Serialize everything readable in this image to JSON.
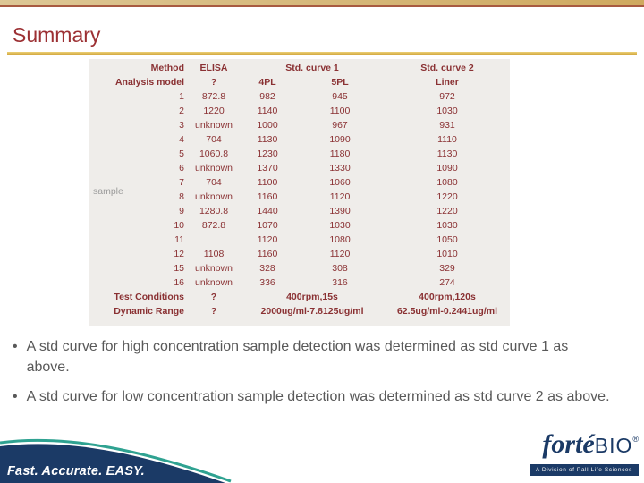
{
  "slide": {
    "title": "Summary"
  },
  "colors": {
    "top_band_gold": "#d4b878",
    "title_red": "#9c3033",
    "table_text_maroon": "#8a3133",
    "panel_gray": "#efedea",
    "bullet_gray": "#595959",
    "navy": "#1b3a66",
    "teal_accent": "#2fa291"
  },
  "table": {
    "header": {
      "method": "Method",
      "analysis_model": "Analysis model",
      "elisa": "ELISA",
      "elisa_model": "?",
      "std_curve_1": "Std. curve 1",
      "model_4pl": "4PL",
      "model_5pl": "5PL",
      "std_curve_2": "Std. curve 2",
      "model_liner": "Liner"
    },
    "sample_label": "sample",
    "rows": [
      {
        "id": "1",
        "elisa": "872.8",
        "pl4": "982",
        "pl5": "945",
        "liner": "972"
      },
      {
        "id": "2",
        "elisa": "1220",
        "pl4": "1140",
        "pl5": "1100",
        "liner": "1030"
      },
      {
        "id": "3",
        "elisa": "unknown",
        "pl4": "1000",
        "pl5": "967",
        "liner": "931"
      },
      {
        "id": "4",
        "elisa": "704",
        "pl4": "1130",
        "pl5": "1090",
        "liner": "1110"
      },
      {
        "id": "5",
        "elisa": "1060.8",
        "pl4": "1230",
        "pl5": "1180",
        "liner": "1130"
      },
      {
        "id": "6",
        "elisa": "unknown",
        "pl4": "1370",
        "pl5": "1330",
        "liner": "1090"
      },
      {
        "id": "7",
        "elisa": "704",
        "pl4": "1100",
        "pl5": "1060",
        "liner": "1080"
      },
      {
        "id": "8",
        "elisa": "unknown",
        "pl4": "1160",
        "pl5": "1120",
        "liner": "1220"
      },
      {
        "id": "9",
        "elisa": "1280.8",
        "pl4": "1440",
        "pl5": "1390",
        "liner": "1220"
      },
      {
        "id": "10",
        "elisa": "872.8",
        "pl4": "1070",
        "pl5": "1030",
        "liner": "1030"
      },
      {
        "id": "11",
        "elisa": "",
        "pl4": "1120",
        "pl5": "1080",
        "liner": "1050"
      },
      {
        "id": "12",
        "elisa": "1108",
        "pl4": "1160",
        "pl5": "1120",
        "liner": "1010"
      },
      {
        "id": "15",
        "elisa": "unknown",
        "pl4": "328",
        "pl5": "308",
        "liner": "329"
      },
      {
        "id": "16",
        "elisa": "unknown",
        "pl4": "336",
        "pl5": "316",
        "liner": "274"
      }
    ],
    "footer": {
      "test_conditions_label": "Test Conditions",
      "test_conditions_elisa": "?",
      "test_conditions_std1": "400rpm,15s",
      "test_conditions_std2": "400rpm,120s",
      "dynamic_range_label": "Dynamic Range",
      "dynamic_range_elisa": "?",
      "dynamic_range_std1": "2000ug/ml-7.8125ug/ml",
      "dynamic_range_std2": "62.5ug/ml-0.2441ug/ml"
    }
  },
  "bullets": {
    "bullet_char": "•",
    "0": "A std curve for high concentration sample detection was determined as std curve 1 as above.",
    "1": "A std curve for low concentration sample detection was determined as std curve 2 as above."
  },
  "footer": {
    "tagline": "Fast. Accurate. EASY.",
    "logo_forte": "forté",
    "logo_bio": "BIO",
    "logo_reg": "®",
    "logo_sub": "A Division of Pall Life Sciences"
  }
}
